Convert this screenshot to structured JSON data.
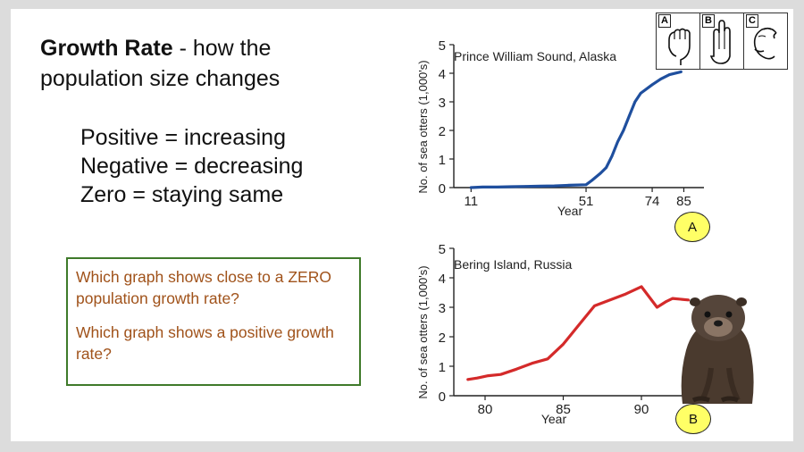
{
  "slide": {
    "title_bold": "Growth Rate",
    "title_rest": " - how the population size changes",
    "definitions": [
      "Positive = increasing",
      "Negative = decreasing",
      "Zero = staying same"
    ],
    "questions": [
      "Which graph shows close to a ZERO population growth rate?",
      "Which graph shows a positive growth rate?"
    ],
    "sign_letters": [
      "A",
      "B",
      "C"
    ],
    "colors": {
      "question_text": "#a0521a",
      "question_border": "#3f7a2a",
      "line_a": "#1f4f9e",
      "line_b": "#d42a2a",
      "badge": "#ffff66"
    }
  },
  "chart_data": [
    {
      "type": "line",
      "badge": "A",
      "title": "Prince William Sound, Alaska",
      "xlabel": "Year",
      "ylabel": "No. of sea otters (1,000's)",
      "xlim": [
        5,
        92
      ],
      "ylim": [
        0,
        5
      ],
      "xticks": [
        11,
        51,
        74,
        85
      ],
      "xtick_labels": [
        "11",
        "51",
        "74",
        "85"
      ],
      "yticks": [
        0,
        1,
        2,
        3,
        4,
        5
      ],
      "x": [
        11,
        15,
        20,
        25,
        30,
        35,
        40,
        45,
        51,
        53,
        56,
        58,
        60,
        62,
        64,
        66,
        68,
        70,
        74,
        77,
        80,
        84
      ],
      "y": [
        0.0,
        0.02,
        0.02,
        0.03,
        0.04,
        0.05,
        0.06,
        0.08,
        0.1,
        0.25,
        0.5,
        0.7,
        1.1,
        1.6,
        2.0,
        2.5,
        3.0,
        3.3,
        3.6,
        3.8,
        3.95,
        4.05
      ]
    },
    {
      "type": "line",
      "badge": "B",
      "title": "Bering Island, Russia",
      "xlabel": "Year",
      "ylabel": "No. of sea otters (1,000's)",
      "xlim": [
        78,
        94
      ],
      "ylim": [
        0,
        5
      ],
      "xticks": [
        80,
        85,
        90
      ],
      "xtick_labels": [
        "80",
        "85",
        "90"
      ],
      "yticks": [
        0,
        1,
        2,
        3,
        4,
        5
      ],
      "x": [
        78.9,
        79.5,
        80.2,
        81,
        82,
        83,
        84,
        85,
        86,
        87,
        88,
        89,
        90,
        91,
        91.6,
        92,
        93
      ],
      "y": [
        0.55,
        0.6,
        0.68,
        0.72,
        0.9,
        1.1,
        1.25,
        1.75,
        2.4,
        3.05,
        3.25,
        3.45,
        3.7,
        3.0,
        3.2,
        3.3,
        3.25
      ]
    }
  ]
}
